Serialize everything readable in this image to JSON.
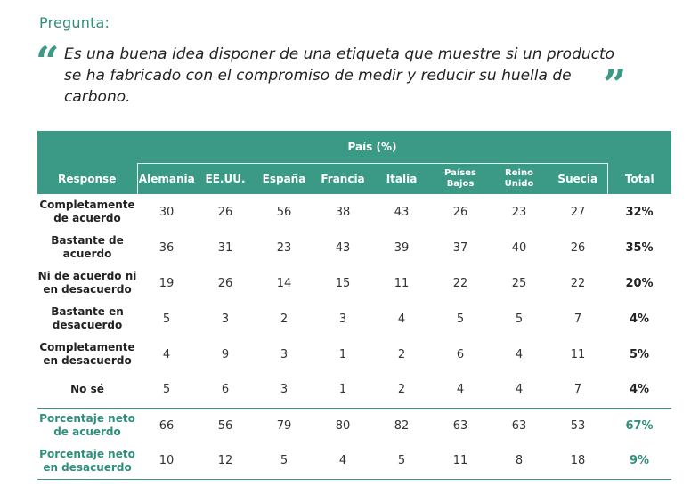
{
  "question_label": "Pregunta:",
  "question_text": "Es una buena idea disponer de una etiqueta que muestre si un producto se ha fabricado con el compromiso de medir y reducir su huella de carbono.",
  "quote_open": "“",
  "quote_close": "”",
  "table": {
    "group_header": "País (%)",
    "response_header": "Response",
    "total_header": "Total",
    "countries": [
      "Alemania",
      "EE.UU.",
      "España",
      "Francia",
      "Italia",
      "Países Bajos",
      "Reino Unido",
      "Suecia"
    ],
    "rows": [
      {
        "label": "Completamente de acuerdo",
        "values": [
          "30",
          "26",
          "56",
          "38",
          "43",
          "26",
          "23",
          "27"
        ],
        "total": "32%"
      },
      {
        "label": "Bastante de acuerdo",
        "values": [
          "36",
          "31",
          "23",
          "43",
          "39",
          "37",
          "40",
          "26"
        ],
        "total": "35%"
      },
      {
        "label": "Ni de acuerdo ni en desacuerdo",
        "values": [
          "19",
          "26",
          "14",
          "15",
          "11",
          "22",
          "25",
          "22"
        ],
        "total": "20%"
      },
      {
        "label": "Bastante en desacuerdo",
        "values": [
          "5",
          "3",
          "2",
          "3",
          "4",
          "5",
          "5",
          "7"
        ],
        "total": "4%"
      },
      {
        "label": "Completamente en desacuerdo",
        "values": [
          "4",
          "9",
          "3",
          "1",
          "2",
          "6",
          "4",
          "11"
        ],
        "total": "5%"
      },
      {
        "label": "No sé",
        "values": [
          "5",
          "6",
          "3",
          "1",
          "2",
          "4",
          "4",
          "7"
        ],
        "total": "4%"
      }
    ],
    "net_rows": [
      {
        "label": "Porcentaje neto de acuerdo",
        "values": [
          "66",
          "56",
          "79",
          "80",
          "82",
          "63",
          "63",
          "53"
        ],
        "total": "67%"
      },
      {
        "label": "Porcentaje neto en desacuerdo",
        "values": [
          "10",
          "12",
          "5",
          "4",
          "5",
          "11",
          "8",
          "18"
        ],
        "total": "9%"
      }
    ]
  },
  "colors": {
    "accent": "#3a9a86",
    "accent_text": "#2e8f7c"
  }
}
